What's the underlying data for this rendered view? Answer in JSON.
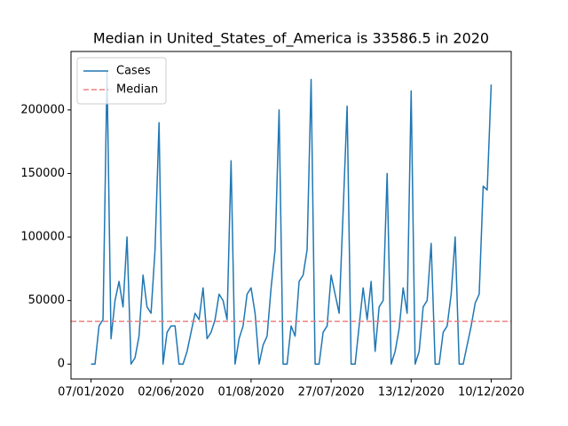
{
  "chart_data": {
    "type": "line",
    "title": "Median in United_States_of_America is 33586.5 in 2020",
    "categories": [
      "07/01/2020",
      null,
      null,
      null,
      null,
      null,
      null,
      null,
      null,
      null,
      null,
      null,
      null,
      null,
      null,
      null,
      null,
      null,
      null,
      null,
      "02/06/2020",
      null,
      null,
      null,
      null,
      null,
      null,
      null,
      null,
      null,
      null,
      null,
      null,
      null,
      null,
      null,
      null,
      null,
      null,
      null,
      "01/08/2020",
      null,
      null,
      null,
      null,
      null,
      null,
      null,
      null,
      null,
      null,
      null,
      null,
      null,
      null,
      null,
      null,
      null,
      null,
      null,
      "27/07/2020",
      null,
      null,
      null,
      null,
      null,
      null,
      null,
      null,
      null,
      null,
      null,
      null,
      null,
      null,
      null,
      null,
      null,
      null,
      null,
      "13/12/2020",
      null,
      null,
      null,
      null,
      null,
      null,
      null,
      null,
      null,
      null,
      null,
      null,
      null,
      null,
      null,
      null,
      null,
      null,
      null,
      "10/12/2020"
    ],
    "series": [
      {
        "name": "Cases",
        "color": "#1f77b4",
        "values": [
          0,
          0,
          30000,
          35000,
          230000,
          20000,
          50000,
          65000,
          45000,
          100000,
          0,
          5000,
          22000,
          70000,
          45000,
          40000,
          90000,
          190000,
          0,
          25000,
          30000,
          30000,
          0,
          0,
          10000,
          25000,
          40000,
          35000,
          60000,
          20000,
          25000,
          35000,
          55000,
          50000,
          35000,
          160000,
          0,
          20000,
          30000,
          55000,
          60000,
          40000,
          0,
          15000,
          22000,
          60000,
          90000,
          200000,
          0,
          0,
          30000,
          22000,
          65000,
          70000,
          90000,
          224000,
          0,
          0,
          25000,
          30000,
          70000,
          55000,
          40000,
          120000,
          203000,
          0,
          0,
          30000,
          60000,
          35000,
          65000,
          10000,
          45000,
          50000,
          150000,
          0,
          10000,
          28000,
          60000,
          40000,
          215000,
          0,
          10000,
          45000,
          50000,
          95000,
          0,
          0,
          25000,
          30000,
          55000,
          100000,
          0,
          0,
          15000,
          30000,
          48000,
          55000,
          140000,
          137000,
          220000
        ]
      }
    ],
    "hlines": [
      {
        "name": "Median",
        "value": 33586.5,
        "color": "#f08080"
      }
    ],
    "ylim": [
      -11700,
      246000
    ],
    "yticks": [
      0,
      50000,
      100000,
      150000,
      200000
    ],
    "legend": "upper left"
  }
}
